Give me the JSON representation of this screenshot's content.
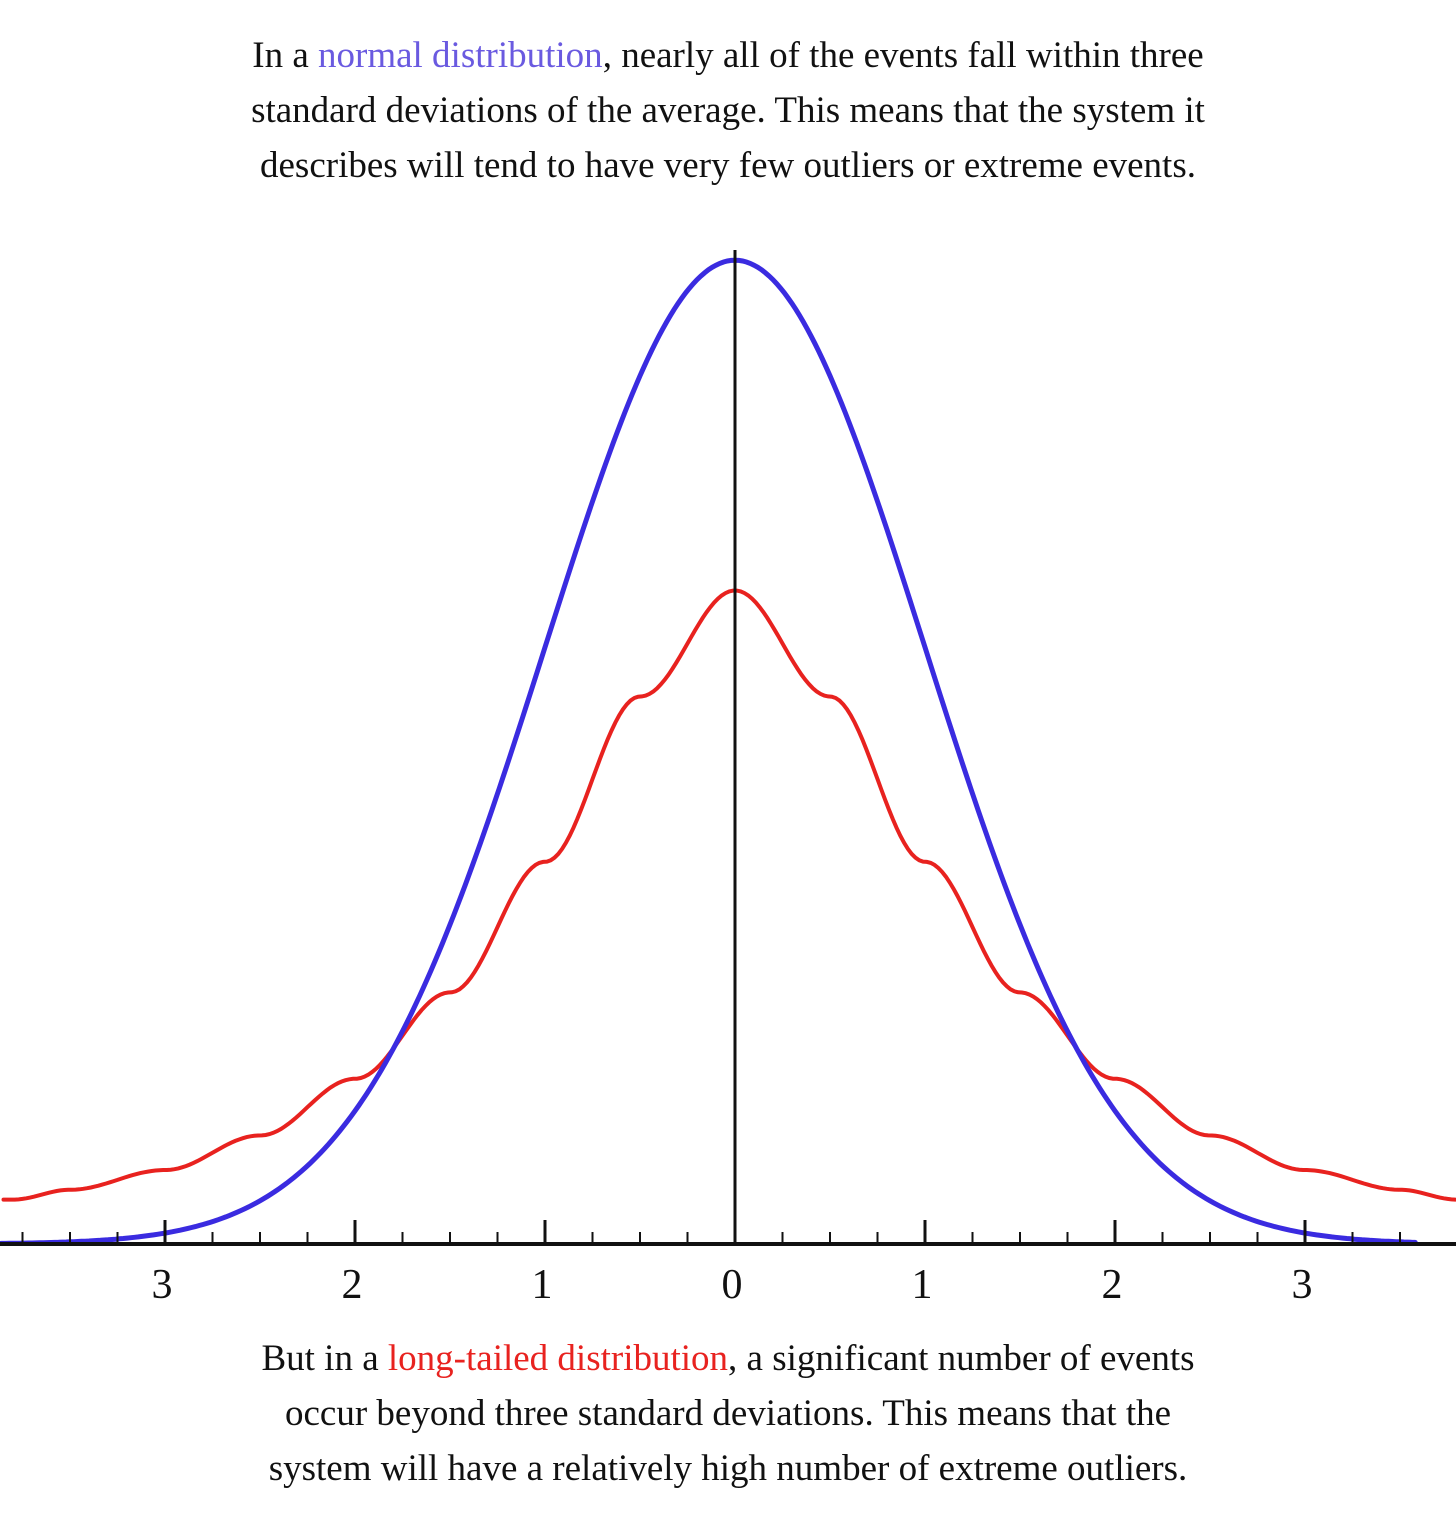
{
  "caption_top": {
    "line1_pre": "In a ",
    "line1_highlight": "normal distribution",
    "line1_post": ", nearly all of the events fall within three",
    "line2": "standard deviations of the average. This means that the system it",
    "line3": "describes will tend to have very few outliers or extreme events."
  },
  "caption_bottom": {
    "line1_pre": "But in a ",
    "line1_highlight": "long-tailed distribution",
    "line1_post": ", a significant number of events",
    "line2": "occur beyond three standard deviations. This means that the",
    "line3": "system will have a relatively high number of  extreme outliers."
  },
  "colors": {
    "normal": "#3a2be0",
    "normal_text": "#6a5ae0",
    "long_tailed": "#e8221f",
    "long_tailed_text": "#e8221f",
    "axis": "#111111"
  },
  "chart_data": {
    "type": "line",
    "title": "",
    "xlabel": "",
    "ylabel": "",
    "x_range": [
      -3.8,
      3.8
    ],
    "y_range": [
      0,
      0.42
    ],
    "grid": false,
    "legend": "none",
    "x_ticks": [
      -3,
      -2,
      -1,
      0,
      1,
      2,
      3
    ],
    "x_tick_labels": [
      "3",
      "2",
      "1",
      "0",
      "1",
      "2",
      "3"
    ],
    "minor_tick_step": 0.25,
    "series": [
      {
        "key": "normal",
        "x": [
          -3.8,
          -3.5,
          -3.0,
          -2.5,
          -2.0,
          -1.5,
          -1.0,
          -0.5,
          0.0,
          0.5,
          1.0,
          1.5,
          2.0,
          2.5,
          3.0,
          3.5,
          3.8
        ],
        "y": [
          0.0003,
          0.0009,
          0.0044,
          0.0175,
          0.054,
          0.1295,
          0.242,
          0.352,
          0.399,
          0.352,
          0.242,
          0.1295,
          0.054,
          0.0175,
          0.0044,
          0.0009,
          0.0003
        ]
      },
      {
        "key": "long_tailed",
        "x": [
          -3.8,
          -3.5,
          -3.0,
          -2.5,
          -2.0,
          -1.5,
          -1.0,
          -0.5,
          0.0,
          0.5,
          1.0,
          1.5,
          2.0,
          2.5,
          3.0,
          3.5,
          3.8
        ],
        "y": [
          0.018,
          0.022,
          0.03,
          0.044,
          0.067,
          0.102,
          0.155,
          0.222,
          0.265,
          0.222,
          0.155,
          0.102,
          0.067,
          0.044,
          0.03,
          0.022,
          0.018
        ]
      }
    ]
  }
}
